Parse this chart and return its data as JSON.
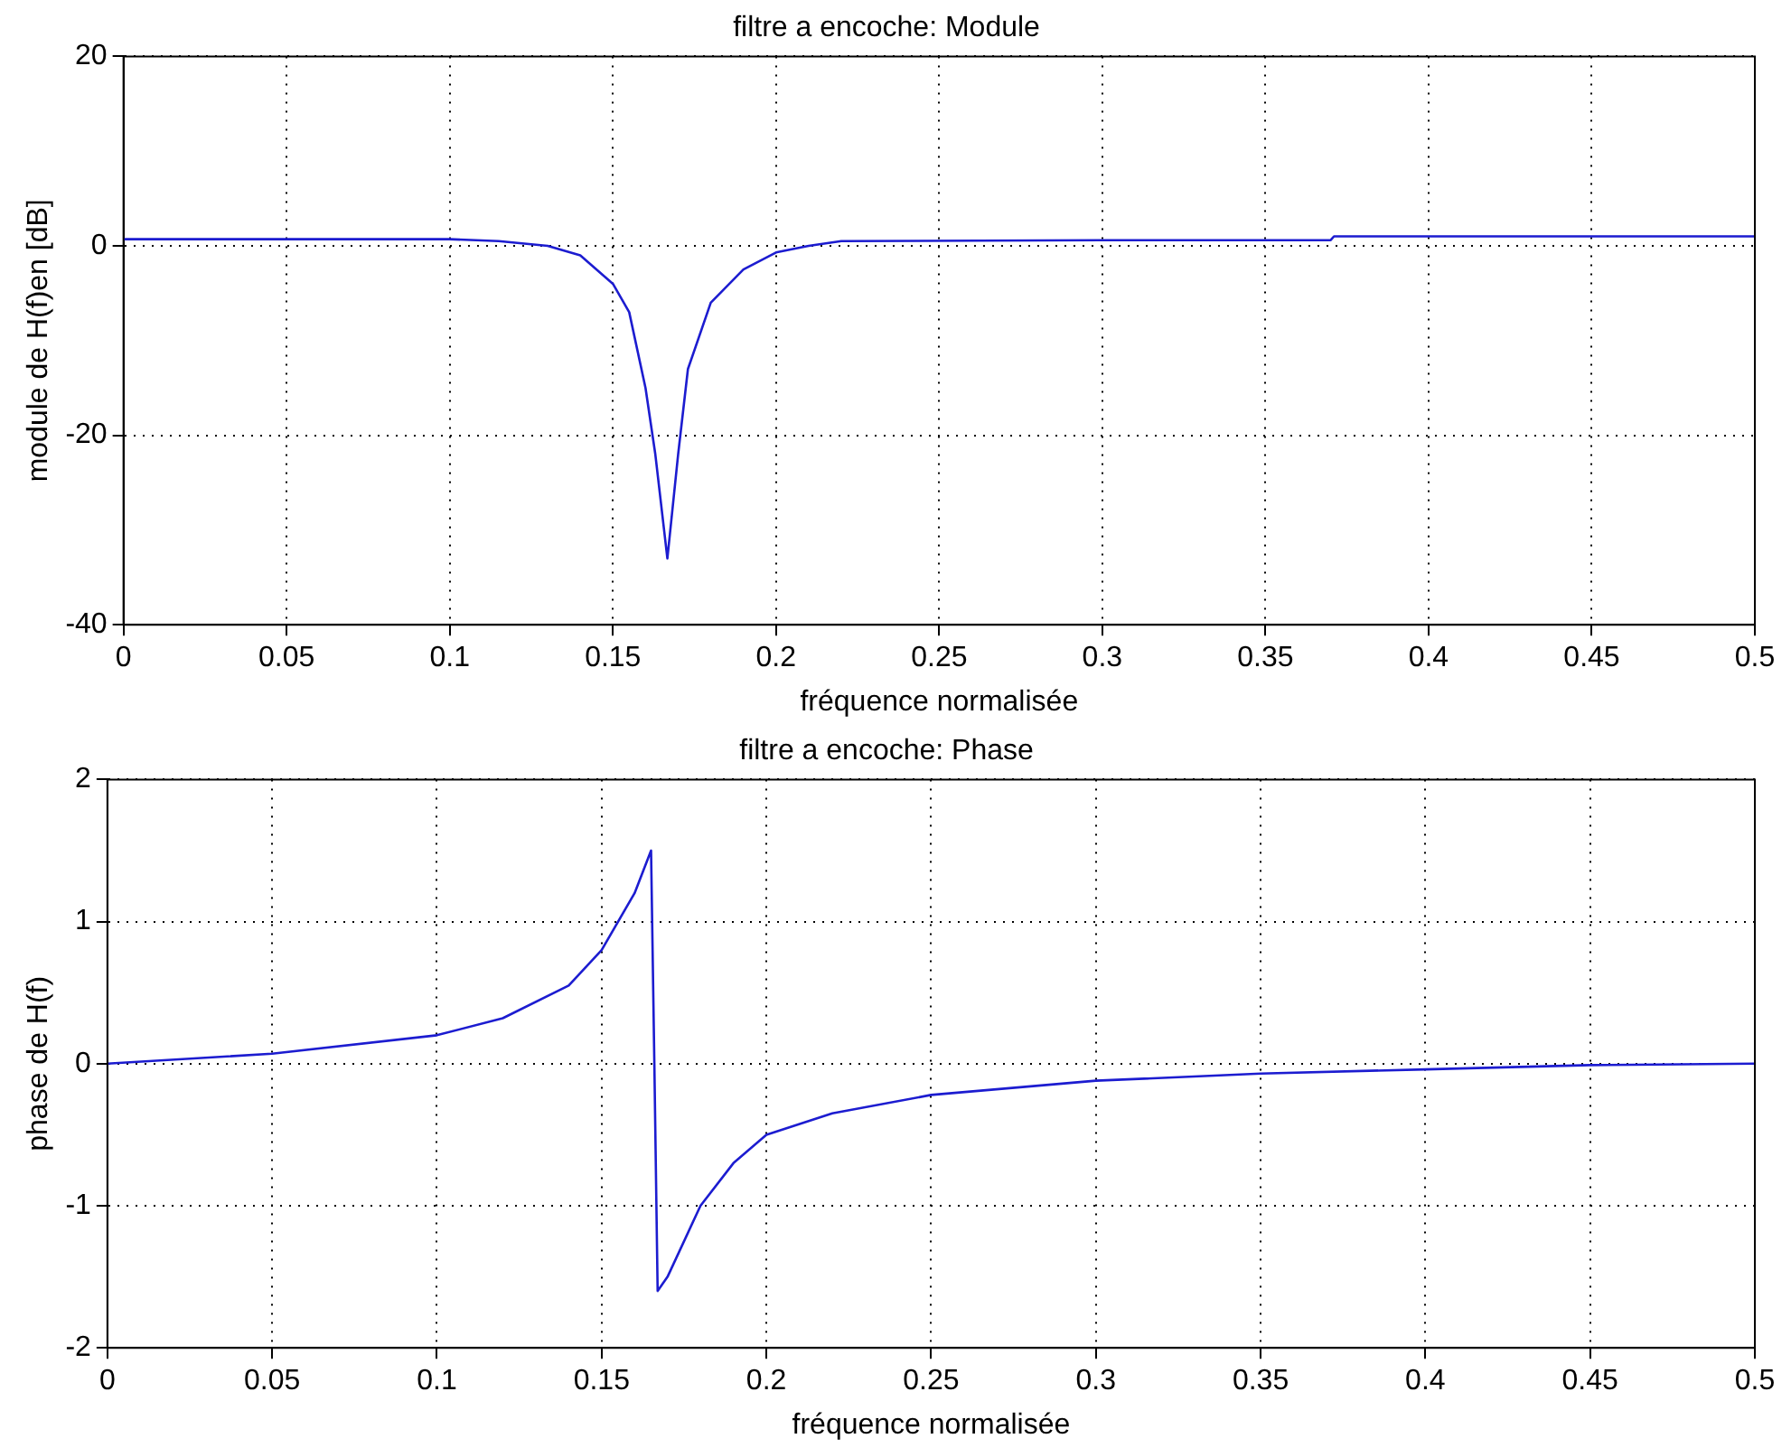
{
  "chart_data": [
    {
      "type": "line",
      "title": "filtre a encoche: Module",
      "xlabel": "fréquence normalisée",
      "ylabel": "module de H(f)en [dB]",
      "grid": true,
      "marker": "none",
      "x": [
        0,
        0.05,
        0.1,
        0.115,
        0.13,
        0.14,
        0.15,
        0.155,
        0.16,
        0.163,
        0.1667,
        0.17,
        0.173,
        0.18,
        0.19,
        0.2,
        0.21,
        0.22,
        0.3,
        0.37,
        0.371,
        0.45,
        0.5
      ],
      "series": [
        {
          "color": "#1c1cd0",
          "values": [
            0.7,
            0.7,
            0.7,
            0.5,
            0,
            -1,
            -4,
            -7,
            -15,
            -22,
            -33,
            -22,
            -13,
            -6,
            -2.5,
            -0.7,
            0,
            0.5,
            0.6,
            0.6,
            1,
            1,
            1
          ]
        }
      ],
      "xlim": [
        0,
        0.5
      ],
      "ylim": [
        -40,
        20
      ],
      "xticks": [
        0,
        0.05,
        0.1,
        0.15,
        0.2,
        0.25,
        0.3,
        0.35,
        0.4,
        0.45,
        0.5
      ],
      "yticks": [
        -40,
        -20,
        0,
        20
      ]
    },
    {
      "type": "line",
      "title": "filtre a encoche: Phase",
      "xlabel": "fréquence normalisée",
      "ylabel": "phase de H(f)",
      "grid": true,
      "marker": "none",
      "x": [
        0,
        0.05,
        0.1,
        0.12,
        0.14,
        0.15,
        0.16,
        0.165,
        0.166,
        0.167,
        0.17,
        0.18,
        0.19,
        0.2,
        0.22,
        0.25,
        0.3,
        0.35,
        0.4,
        0.45,
        0.5
      ],
      "series": [
        {
          "color": "#1c1cd0",
          "values": [
            0,
            0.07,
            0.2,
            0.32,
            0.55,
            0.8,
            1.2,
            1.5,
            0,
            -1.6,
            -1.5,
            -1.0,
            -0.7,
            -0.5,
            -0.35,
            -0.22,
            -0.12,
            -0.07,
            -0.04,
            -0.01,
            0
          ]
        }
      ],
      "xlim": [
        0,
        0.5
      ],
      "ylim": [
        -2,
        2
      ],
      "xticks": [
        0,
        0.05,
        0.1,
        0.15,
        0.2,
        0.25,
        0.3,
        0.35,
        0.4,
        0.45,
        0.5
      ],
      "yticks": [
        -2,
        -1,
        0,
        1,
        2
      ]
    }
  ]
}
